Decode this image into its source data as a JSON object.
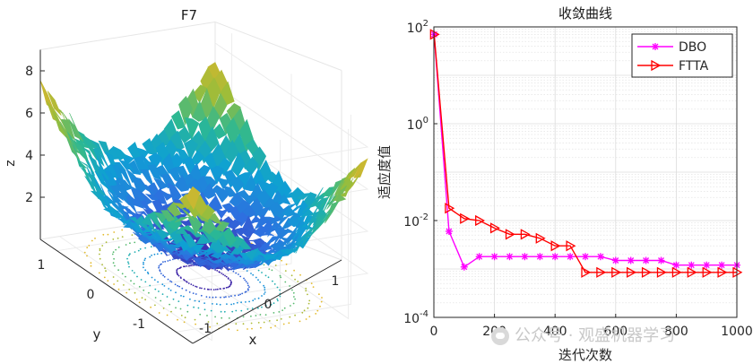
{
  "chart_data": [
    {
      "type": "surface3d",
      "title": "F7",
      "xlabel": "x",
      "ylabel": "y",
      "zlabel": "z",
      "xticks": [
        "-1",
        "0",
        "1"
      ],
      "yticks": [
        "1",
        "0",
        "-1"
      ],
      "zticks": [
        "2",
        "4",
        "6",
        "8"
      ],
      "xlim": [
        -1.28,
        1.28
      ],
      "ylim": [
        -1.28,
        1.28
      ],
      "zlim": [
        0,
        9
      ],
      "colormap": [
        "#3e26a8",
        "#2f6ee0",
        "#0ea0d4",
        "#2cb893",
        "#9bbd3a",
        "#e0b52c",
        "#f9e521"
      ]
    },
    {
      "type": "line",
      "title": "收敛曲线",
      "xlabel": "迭代次数",
      "ylabel": "适应度值",
      "yscale": "log",
      "xlim": [
        0,
        1000
      ],
      "ylim": [
        0.0001,
        100
      ],
      "grid": true,
      "legend_position": "top-right",
      "xticks": [
        "0",
        "200",
        "400",
        "600",
        "800",
        "1000"
      ],
      "yticks": [
        {
          "base": "10",
          "exp": "2",
          "value": 100
        },
        {
          "base": "10",
          "exp": "0",
          "value": 1
        },
        {
          "base": "10",
          "exp": "-2",
          "value": 0.01
        },
        {
          "base": "10",
          "exp": "-4",
          "value": 0.0001
        }
      ],
      "series": [
        {
          "name": "DBO",
          "color": "#ff00ff",
          "marker": "asterisk",
          "x": [
            1,
            50,
            100,
            150,
            200,
            250,
            300,
            350,
            400,
            450,
            500,
            550,
            600,
            650,
            700,
            750,
            800,
            850,
            900,
            950,
            1000
          ],
          "y": [
            70,
            0.006,
            0.0011,
            0.0018,
            0.0018,
            0.0018,
            0.0018,
            0.0018,
            0.0018,
            0.0018,
            0.0018,
            0.0018,
            0.0015,
            0.0015,
            0.0015,
            0.0015,
            0.0012,
            0.0012,
            0.0012,
            0.0012,
            0.0012
          ]
        },
        {
          "name": "FTTA",
          "color": "#ff0000",
          "marker": "triangle-right",
          "x": [
            1,
            50,
            100,
            150,
            200,
            250,
            300,
            350,
            400,
            450,
            500,
            550,
            600,
            650,
            700,
            750,
            800,
            850,
            900,
            950,
            1000
          ],
          "y": [
            70,
            0.018,
            0.011,
            0.01,
            0.007,
            0.0052,
            0.0052,
            0.0043,
            0.003,
            0.003,
            0.00085,
            0.00085,
            0.00085,
            0.00085,
            0.00085,
            0.00085,
            0.00085,
            0.00085,
            0.00085,
            0.00085,
            0.00085
          ]
        }
      ]
    }
  ],
  "watermark": "公众号 · 观盛机器学习"
}
